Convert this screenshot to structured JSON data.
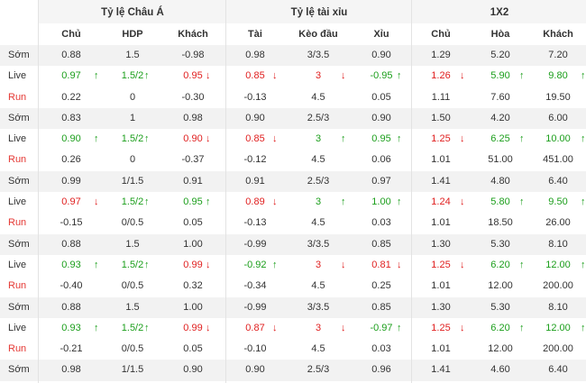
{
  "groups": [
    "Tỷ lệ Châu Á",
    "Tỷ lệ tài xỉu",
    "1X2"
  ],
  "columns": [
    "Chủ",
    "HDP",
    "Khách",
    "Tài",
    "Kèo đầu",
    "Xỉu",
    "Chủ",
    "Hòa",
    "Khách"
  ],
  "arrow_glyphs": {
    "up": "↑",
    "down": "↓"
  },
  "colors": {
    "up": "#1b9e1b",
    "down": "#e02020",
    "run_label": "#e53935",
    "shade": "#f2f2f2"
  },
  "rows": [
    {
      "label": "Sớm",
      "type": "som",
      "cells": [
        {
          "v": "0.88"
        },
        {
          "v": "1.5"
        },
        {
          "v": "-0.98"
        },
        {
          "v": "0.98"
        },
        {
          "v": "3/3.5"
        },
        {
          "v": "0.90"
        },
        {
          "v": "1.29"
        },
        {
          "v": "5.20"
        },
        {
          "v": "7.20"
        }
      ]
    },
    {
      "label": "Live",
      "type": "live",
      "cells": [
        {
          "v": "0.97",
          "d": "up"
        },
        {
          "v": "1.5/2",
          "d": "up"
        },
        {
          "v": "0.95",
          "d": "down"
        },
        {
          "v": "0.85",
          "d": "down"
        },
        {
          "v": "3",
          "d": "down"
        },
        {
          "v": "-0.95",
          "d": "up"
        },
        {
          "v": "1.26",
          "d": "down"
        },
        {
          "v": "5.90",
          "d": "up"
        },
        {
          "v": "9.80",
          "d": "up"
        }
      ]
    },
    {
      "label": "Run",
      "type": "run",
      "cells": [
        {
          "v": "0.22"
        },
        {
          "v": "0"
        },
        {
          "v": "-0.30"
        },
        {
          "v": "-0.13"
        },
        {
          "v": "4.5"
        },
        {
          "v": "0.05"
        },
        {
          "v": "1.11"
        },
        {
          "v": "7.60"
        },
        {
          "v": "19.50"
        }
      ]
    },
    {
      "label": "Sớm",
      "type": "som",
      "cells": [
        {
          "v": "0.83"
        },
        {
          "v": "1"
        },
        {
          "v": "0.98"
        },
        {
          "v": "0.90"
        },
        {
          "v": "2.5/3"
        },
        {
          "v": "0.90"
        },
        {
          "v": "1.50"
        },
        {
          "v": "4.20"
        },
        {
          "v": "6.00"
        }
      ]
    },
    {
      "label": "Live",
      "type": "live",
      "cells": [
        {
          "v": "0.90",
          "d": "up"
        },
        {
          "v": "1.5/2",
          "d": "up"
        },
        {
          "v": "0.90",
          "d": "down"
        },
        {
          "v": "0.85",
          "d": "down"
        },
        {
          "v": "3",
          "d": "up"
        },
        {
          "v": "0.95",
          "d": "up"
        },
        {
          "v": "1.25",
          "d": "down"
        },
        {
          "v": "6.25",
          "d": "up"
        },
        {
          "v": "10.00",
          "d": "up"
        }
      ]
    },
    {
      "label": "Run",
      "type": "run",
      "cells": [
        {
          "v": "0.26"
        },
        {
          "v": "0"
        },
        {
          "v": "-0.37"
        },
        {
          "v": "-0.12"
        },
        {
          "v": "4.5"
        },
        {
          "v": "0.06"
        },
        {
          "v": "1.01"
        },
        {
          "v": "51.00"
        },
        {
          "v": "451.00"
        }
      ]
    },
    {
      "label": "Sớm",
      "type": "som",
      "cells": [
        {
          "v": "0.99"
        },
        {
          "v": "1/1.5"
        },
        {
          "v": "0.91"
        },
        {
          "v": "0.91"
        },
        {
          "v": "2.5/3"
        },
        {
          "v": "0.97"
        },
        {
          "v": "1.41"
        },
        {
          "v": "4.80"
        },
        {
          "v": "6.40"
        }
      ]
    },
    {
      "label": "Live",
      "type": "live",
      "cells": [
        {
          "v": "0.97",
          "d": "down"
        },
        {
          "v": "1.5/2",
          "d": "up"
        },
        {
          "v": "0.95",
          "d": "up"
        },
        {
          "v": "0.89",
          "d": "down"
        },
        {
          "v": "3",
          "d": "up"
        },
        {
          "v": "1.00",
          "d": "up"
        },
        {
          "v": "1.24",
          "d": "down"
        },
        {
          "v": "5.80",
          "d": "up"
        },
        {
          "v": "9.50",
          "d": "up"
        }
      ]
    },
    {
      "label": "Run",
      "type": "run",
      "cells": [
        {
          "v": "-0.15"
        },
        {
          "v": "0/0.5"
        },
        {
          "v": "0.05"
        },
        {
          "v": "-0.13"
        },
        {
          "v": "4.5"
        },
        {
          "v": "0.03"
        },
        {
          "v": "1.01"
        },
        {
          "v": "18.50"
        },
        {
          "v": "26.00"
        }
      ]
    },
    {
      "label": "Sớm",
      "type": "som",
      "cells": [
        {
          "v": "0.88"
        },
        {
          "v": "1.5"
        },
        {
          "v": "1.00"
        },
        {
          "v": "-0.99"
        },
        {
          "v": "3/3.5"
        },
        {
          "v": "0.85"
        },
        {
          "v": "1.30"
        },
        {
          "v": "5.30"
        },
        {
          "v": "8.10"
        }
      ]
    },
    {
      "label": "Live",
      "type": "live",
      "cells": [
        {
          "v": "0.93",
          "d": "up"
        },
        {
          "v": "1.5/2",
          "d": "up"
        },
        {
          "v": "0.99",
          "d": "down"
        },
        {
          "v": "-0.92",
          "d": "up"
        },
        {
          "v": "3",
          "d": "down"
        },
        {
          "v": "0.81",
          "d": "down"
        },
        {
          "v": "1.25",
          "d": "down"
        },
        {
          "v": "6.20",
          "d": "up"
        },
        {
          "v": "12.00",
          "d": "up"
        }
      ]
    },
    {
      "label": "Run",
      "type": "run",
      "cells": [
        {
          "v": "-0.40"
        },
        {
          "v": "0/0.5"
        },
        {
          "v": "0.32"
        },
        {
          "v": "-0.34"
        },
        {
          "v": "4.5"
        },
        {
          "v": "0.25"
        },
        {
          "v": "1.01"
        },
        {
          "v": "12.00"
        },
        {
          "v": "200.00"
        }
      ]
    },
    {
      "label": "Sớm",
      "type": "som",
      "cells": [
        {
          "v": "0.88"
        },
        {
          "v": "1.5"
        },
        {
          "v": "1.00"
        },
        {
          "v": "-0.99"
        },
        {
          "v": "3/3.5"
        },
        {
          "v": "0.85"
        },
        {
          "v": "1.30"
        },
        {
          "v": "5.30"
        },
        {
          "v": "8.10"
        }
      ]
    },
    {
      "label": "Live",
      "type": "live",
      "cells": [
        {
          "v": "0.93",
          "d": "up"
        },
        {
          "v": "1.5/2",
          "d": "up"
        },
        {
          "v": "0.99",
          "d": "down"
        },
        {
          "v": "0.87",
          "d": "down"
        },
        {
          "v": "3",
          "d": "down"
        },
        {
          "v": "-0.97",
          "d": "up"
        },
        {
          "v": "1.25",
          "d": "down"
        },
        {
          "v": "6.20",
          "d": "up"
        },
        {
          "v": "12.00",
          "d": "up"
        }
      ]
    },
    {
      "label": "Run",
      "type": "run",
      "cells": [
        {
          "v": "-0.21"
        },
        {
          "v": "0/0.5"
        },
        {
          "v": "0.05"
        },
        {
          "v": "-0.10"
        },
        {
          "v": "4.5"
        },
        {
          "v": "0.03"
        },
        {
          "v": "1.01"
        },
        {
          "v": "12.00"
        },
        {
          "v": "200.00"
        }
      ]
    },
    {
      "label": "Sớm",
      "type": "som",
      "cells": [
        {
          "v": "0.98"
        },
        {
          "v": "1/1.5"
        },
        {
          "v": "0.90"
        },
        {
          "v": "0.90"
        },
        {
          "v": "2.5/3"
        },
        {
          "v": "0.96"
        },
        {
          "v": "1.41"
        },
        {
          "v": "4.60"
        },
        {
          "v": "6.40"
        }
      ]
    }
  ]
}
